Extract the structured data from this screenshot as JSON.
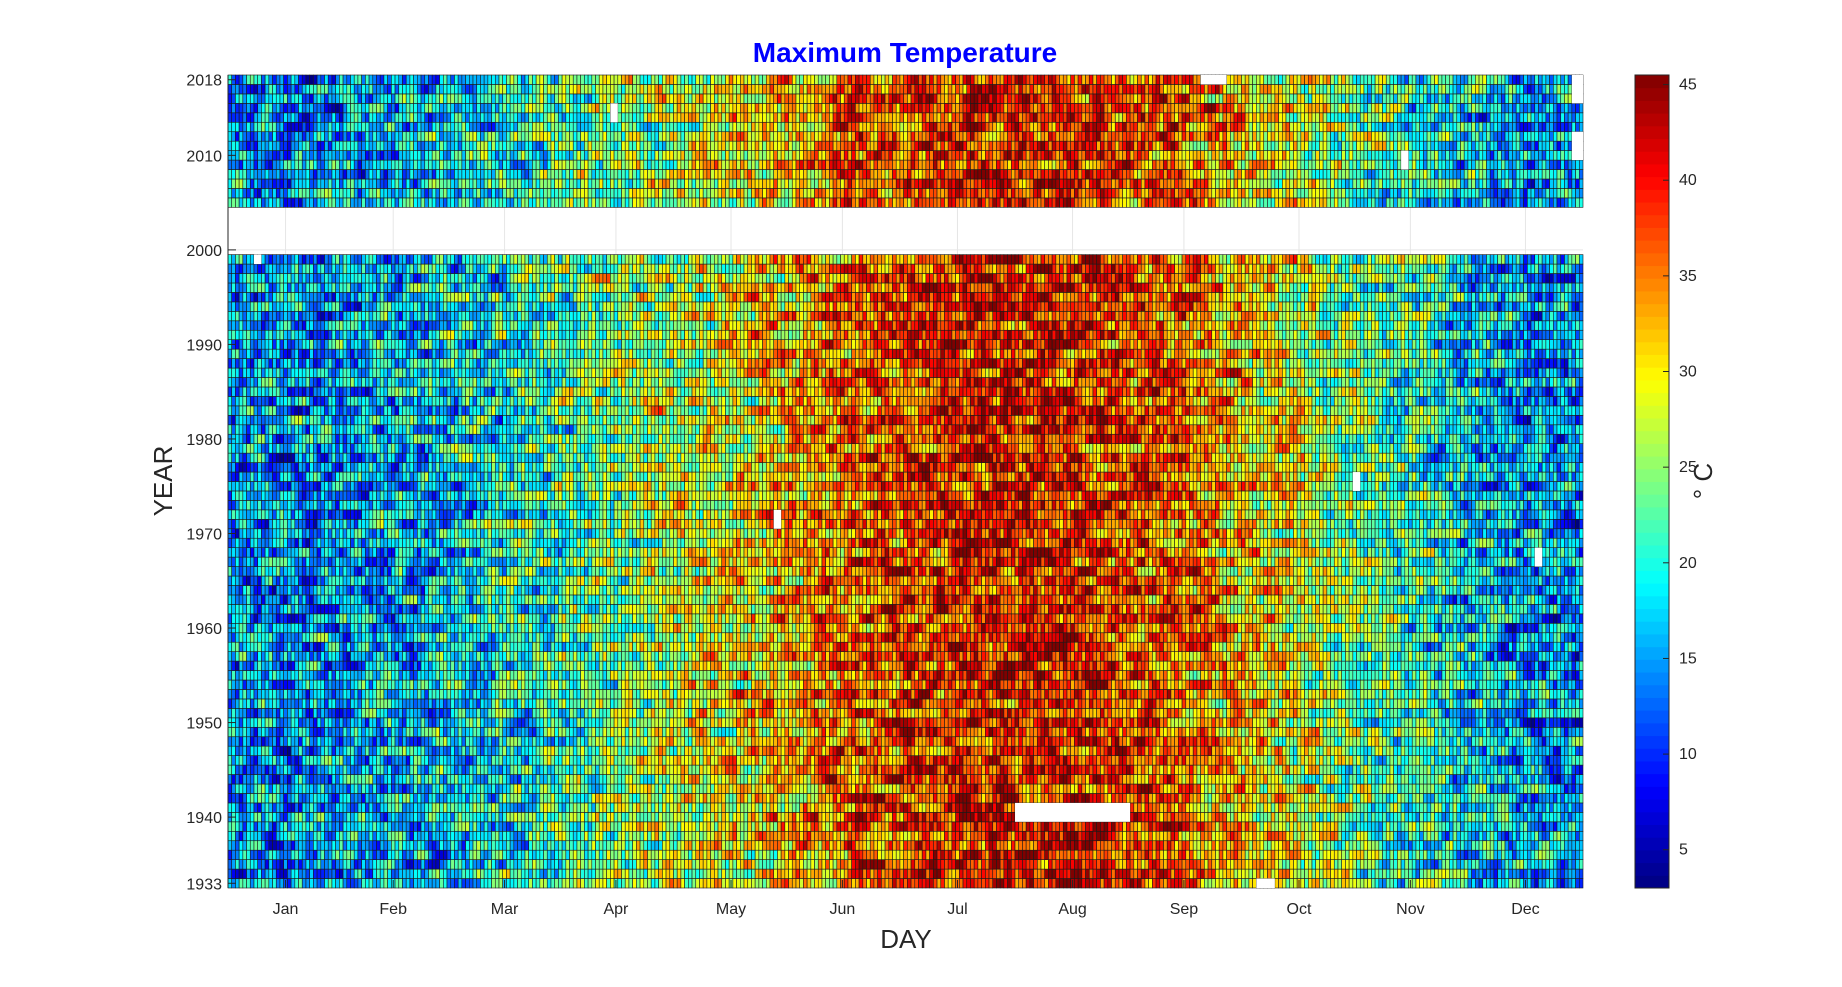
{
  "chart_data": {
    "type": "heatmap",
    "title": "Maximum Temperature",
    "xlabel": "DAY",
    "ylabel": "YEAR",
    "title_color": "#0000ff",
    "colormap": "jet",
    "x_range": [
      1,
      365
    ],
    "y_range": [
      1933,
      2018
    ],
    "x_ticks": [
      {
        "label": "Jan",
        "day": 16
      },
      {
        "label": "Feb",
        "day": 45
      },
      {
        "label": "Mar",
        "day": 75
      },
      {
        "label": "Apr",
        "day": 105
      },
      {
        "label": "May",
        "day": 136
      },
      {
        "label": "Jun",
        "day": 166
      },
      {
        "label": "Jul",
        "day": 197
      },
      {
        "label": "Aug",
        "day": 228
      },
      {
        "label": "Sep",
        "day": 258
      },
      {
        "label": "Oct",
        "day": 289
      },
      {
        "label": "Nov",
        "day": 319
      },
      {
        "label": "Dec",
        "day": 350
      }
    ],
    "y_ticks": [
      1933,
      1940,
      1950,
      1960,
      1970,
      1980,
      1990,
      2000,
      2010,
      2018
    ],
    "colorbar": {
      "label": "° C",
      "range": [
        3,
        45.5
      ],
      "ticks": [
        5,
        10,
        15,
        20,
        25,
        30,
        35,
        40,
        45
      ]
    },
    "data_year_ranges": [
      [
        1933,
        1999
      ],
      [
        2005,
        2018
      ]
    ],
    "missing_years": [
      2000,
      2001,
      2002,
      2003,
      2004
    ],
    "seasonal_profile_month_mean_max_temp_c": {
      "months": [
        "Jan",
        "Feb",
        "Mar",
        "Apr",
        "May",
        "Jun",
        "Jul",
        "Aug",
        "Sep",
        "Oct",
        "Nov",
        "Dec"
      ],
      "values": [
        15,
        17,
        20,
        25,
        29,
        35,
        39,
        39,
        35,
        28,
        21,
        16
      ]
    },
    "missing_cells": [
      {
        "year_start": 1940,
        "year_end": 1941,
        "day_start": 213,
        "day_end": 243
      },
      {
        "year_start": 1933,
        "year_end": 1933,
        "day_start": 278,
        "day_end": 282
      },
      {
        "year_start": 1971,
        "year_end": 1972,
        "day_start": 148,
        "day_end": 149
      },
      {
        "year_start": 1975,
        "year_end": 1976,
        "day_start": 304,
        "day_end": 305
      },
      {
        "year_start": 1967,
        "year_end": 1968,
        "day_start": 353,
        "day_end": 354
      },
      {
        "year_start": 1999,
        "year_end": 1999,
        "day_start": 8,
        "day_end": 9
      },
      {
        "year_start": 2014,
        "year_end": 2015,
        "day_start": 104,
        "day_end": 105
      },
      {
        "year_start": 2009,
        "year_end": 2010,
        "day_start": 317,
        "day_end": 318
      },
      {
        "year_start": 2018,
        "year_end": 2018,
        "day_start": 263,
        "day_end": 269
      },
      {
        "year_start": 2016,
        "year_end": 2018,
        "day_start": 363,
        "day_end": 365
      },
      {
        "year_start": 2010,
        "year_end": 2012,
        "day_start": 363,
        "day_end": 365
      }
    ]
  }
}
